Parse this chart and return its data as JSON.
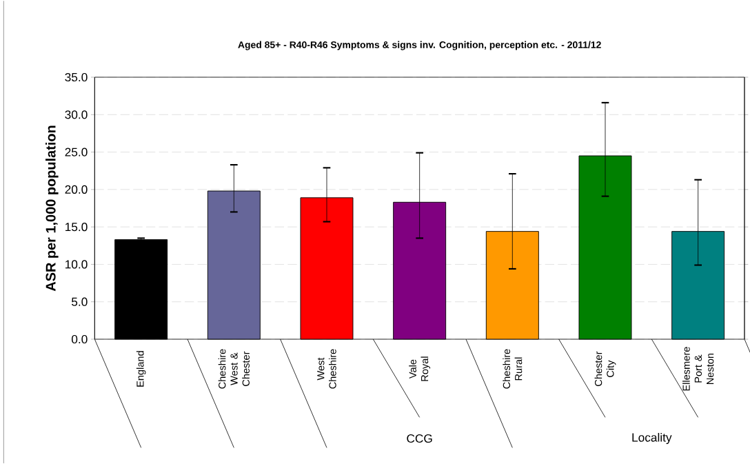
{
  "chart_data": {
    "type": "bar",
    "title": "Aged 85+ - R40-R46 Symptoms & signs inv. Cognition, perception etc. - 2011/12",
    "ylabel": "ASR per 1,000 population",
    "categories": [
      "England",
      "Cheshire West & Chester",
      "West Cheshire",
      "Vale Royal",
      "Cheshire Rural",
      "Chester City",
      "Ellesmere Port & Neston"
    ],
    "values": [
      13.3,
      19.8,
      18.9,
      18.3,
      14.4,
      24.5,
      14.4
    ],
    "errors": [
      [
        13.1,
        13.5
      ],
      [
        17.0,
        23.3
      ],
      [
        15.7,
        22.9
      ],
      [
        13.5,
        24.9
      ],
      [
        9.4,
        22.1
      ],
      [
        19.1,
        31.6
      ],
      [
        9.9,
        21.3
      ]
    ],
    "colors": [
      "#000000",
      "#666699",
      "#ff0000",
      "#800080",
      "#ff9900",
      "#008000",
      "#008080"
    ],
    "annotations": [
      "CCG",
      "Locality"
    ],
    "ylim": [
      0,
      35
    ],
    "yticks": [
      {
        "value": 0,
        "label": "0.0"
      },
      {
        "value": 5,
        "label": "5.0"
      },
      {
        "value": 10,
        "label": "10.0"
      },
      {
        "value": 15,
        "label": "15.0"
      },
      {
        "value": 20,
        "label": "20.0"
      },
      {
        "value": 25,
        "label": "25.0"
      },
      {
        "value": 30,
        "label": "30.0"
      },
      {
        "value": 35,
        "label": "35.0"
      }
    ],
    "grid": "y"
  }
}
